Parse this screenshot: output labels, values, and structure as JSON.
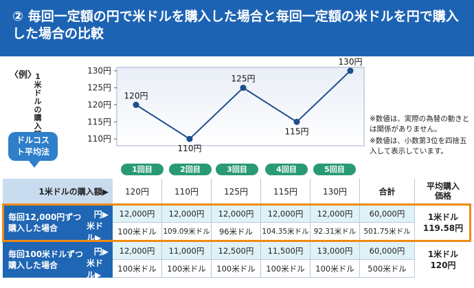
{
  "header": {
    "title": "② 毎回一定額の円で米ドルを購入した場合と毎回一定額の米ドルを円で購入した場合の比較"
  },
  "example_label": "〈例〉",
  "chart_data": {
    "type": "line",
    "categories": [
      "1回目",
      "2回目",
      "3回目",
      "4回目",
      "5回目"
    ],
    "series": [
      {
        "values": [
          120,
          110,
          125,
          115,
          130
        ]
      }
    ],
    "data_labels": [
      "120円",
      "110円",
      "125円",
      "115円",
      "130円"
    ],
    "yticks": [
      "110円",
      "115円",
      "120円",
      "125円",
      "130円"
    ],
    "ytick_values": [
      110,
      115,
      120,
      125,
      130
    ],
    "ylabel": "1米ドルの購入額",
    "ylim": [
      108,
      131
    ],
    "color": "#1f4e8c"
  },
  "notes": [
    "※数値は、実際の為替の動きとは関係がありません。",
    "※数値は、小数第3位を四捨五入して表示しています。"
  ],
  "badge": "ドルコスト平均法",
  "rounds": [
    "1回目",
    "2回目",
    "3回目",
    "4回目",
    "5回目"
  ],
  "table": {
    "header_left": "1米ドルの購入額▶",
    "header_values": [
      "120円",
      "110円",
      "125円",
      "115円",
      "130円"
    ],
    "header_total": "合計",
    "header_avg": "平均購入価格",
    "groupA": {
      "label": "毎回12,000円ずつ購入した場合",
      "yen_label": "円▶",
      "usd_label": "米ドル▶",
      "yen": [
        "12,000円",
        "12,000円",
        "12,000円",
        "12,000円",
        "12,000円",
        "60,000円"
      ],
      "usd": [
        "100米ドル",
        "109.09米ドル",
        "96米ドル",
        "104.35米ドル",
        "92.31米ドル",
        "501.75米ドル"
      ],
      "avg_line1": "1米ドル",
      "avg_line2": "119.58円"
    },
    "groupB": {
      "label": "毎回100米ドルずつ購入した場合",
      "yen_label": "円▶",
      "usd_label": "米ドル▶",
      "yen": [
        "12,000円",
        "11,000円",
        "12,500円",
        "11,500円",
        "13,000円",
        "60,000円"
      ],
      "usd": [
        "100米ドル",
        "100米ドル",
        "100米ドル",
        "100米ドル",
        "100米ドル",
        "500米ドル"
      ],
      "avg_line1": "1米ドル",
      "avg_line2": "120円"
    }
  }
}
